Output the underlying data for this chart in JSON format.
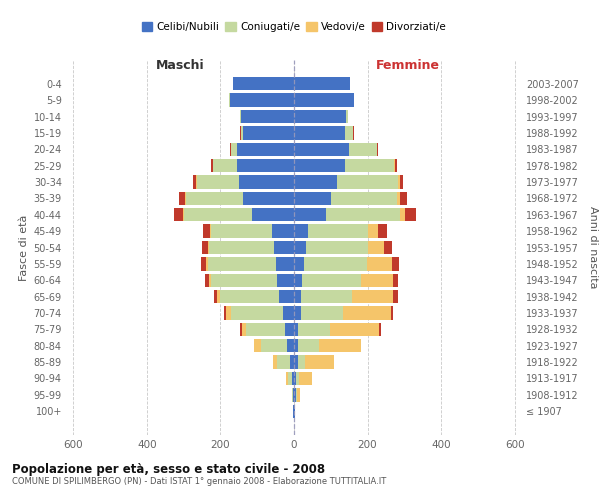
{
  "age_groups": [
    "100+",
    "95-99",
    "90-94",
    "85-89",
    "80-84",
    "75-79",
    "70-74",
    "65-69",
    "60-64",
    "55-59",
    "50-54",
    "45-49",
    "40-44",
    "35-39",
    "30-34",
    "25-29",
    "20-24",
    "15-19",
    "10-14",
    "5-9",
    "0-4"
  ],
  "birth_years": [
    "≤ 1907",
    "1908-1912",
    "1913-1917",
    "1918-1922",
    "1923-1927",
    "1928-1932",
    "1933-1937",
    "1938-1942",
    "1943-1947",
    "1948-1952",
    "1953-1957",
    "1958-1962",
    "1963-1967",
    "1968-1972",
    "1973-1977",
    "1978-1982",
    "1983-1987",
    "1988-1992",
    "1993-1997",
    "1998-2002",
    "2003-2007"
  ],
  "male": {
    "celibe": [
      2,
      3,
      5,
      10,
      20,
      25,
      30,
      40,
      45,
      50,
      55,
      60,
      115,
      140,
      150,
      155,
      155,
      140,
      145,
      175,
      165
    ],
    "coniugato": [
      0,
      2,
      12,
      35,
      70,
      105,
      140,
      160,
      180,
      185,
      175,
      165,
      185,
      155,
      115,
      65,
      15,
      5,
      2,
      1,
      0
    ],
    "vedovo": [
      0,
      1,
      5,
      12,
      18,
      12,
      15,
      10,
      6,
      5,
      4,
      3,
      2,
      2,
      1,
      1,
      1,
      0,
      0,
      0,
      0
    ],
    "divorziato": [
      0,
      0,
      0,
      0,
      0,
      5,
      5,
      8,
      10,
      14,
      16,
      20,
      25,
      15,
      8,
      5,
      2,
      1,
      0,
      0,
      0
    ]
  },
  "female": {
    "nubile": [
      2,
      5,
      5,
      10,
      12,
      12,
      18,
      18,
      22,
      28,
      32,
      38,
      88,
      100,
      118,
      138,
      150,
      138,
      142,
      162,
      152
    ],
    "coniugata": [
      0,
      2,
      8,
      20,
      55,
      85,
      115,
      140,
      160,
      170,
      170,
      162,
      200,
      180,
      165,
      135,
      75,
      22,
      5,
      2,
      0
    ],
    "vedova": [
      1,
      10,
      35,
      80,
      115,
      135,
      132,
      112,
      88,
      68,
      42,
      28,
      14,
      8,
      4,
      2,
      2,
      1,
      0,
      0,
      0
    ],
    "divorziata": [
      0,
      0,
      0,
      0,
      0,
      5,
      5,
      12,
      14,
      20,
      22,
      25,
      30,
      18,
      10,
      5,
      2,
      1,
      0,
      0,
      0
    ]
  },
  "colors": {
    "celibe": "#4472c4",
    "coniugato": "#c5d9a0",
    "vedovo": "#f5c56a",
    "divorziato": "#c0392b"
  },
  "title": "Popolazione per età, sesso e stato civile - 2008",
  "subtitle": "COMUNE DI SPILIMBERGO (PN) - Dati ISTAT 1° gennaio 2008 - Elaborazione TUTTITALIA.IT",
  "xlabel_left": "Maschi",
  "xlabel_right": "Femmine",
  "ylabel_left": "Fasce di età",
  "ylabel_right": "Anni di nascita",
  "xlim": 620,
  "background_color": "#ffffff",
  "grid_color": "#bbbbbb",
  "legend_labels": [
    "Celibi/Nubili",
    "Coniugati/e",
    "Vedovi/e",
    "Divorziati/e"
  ]
}
